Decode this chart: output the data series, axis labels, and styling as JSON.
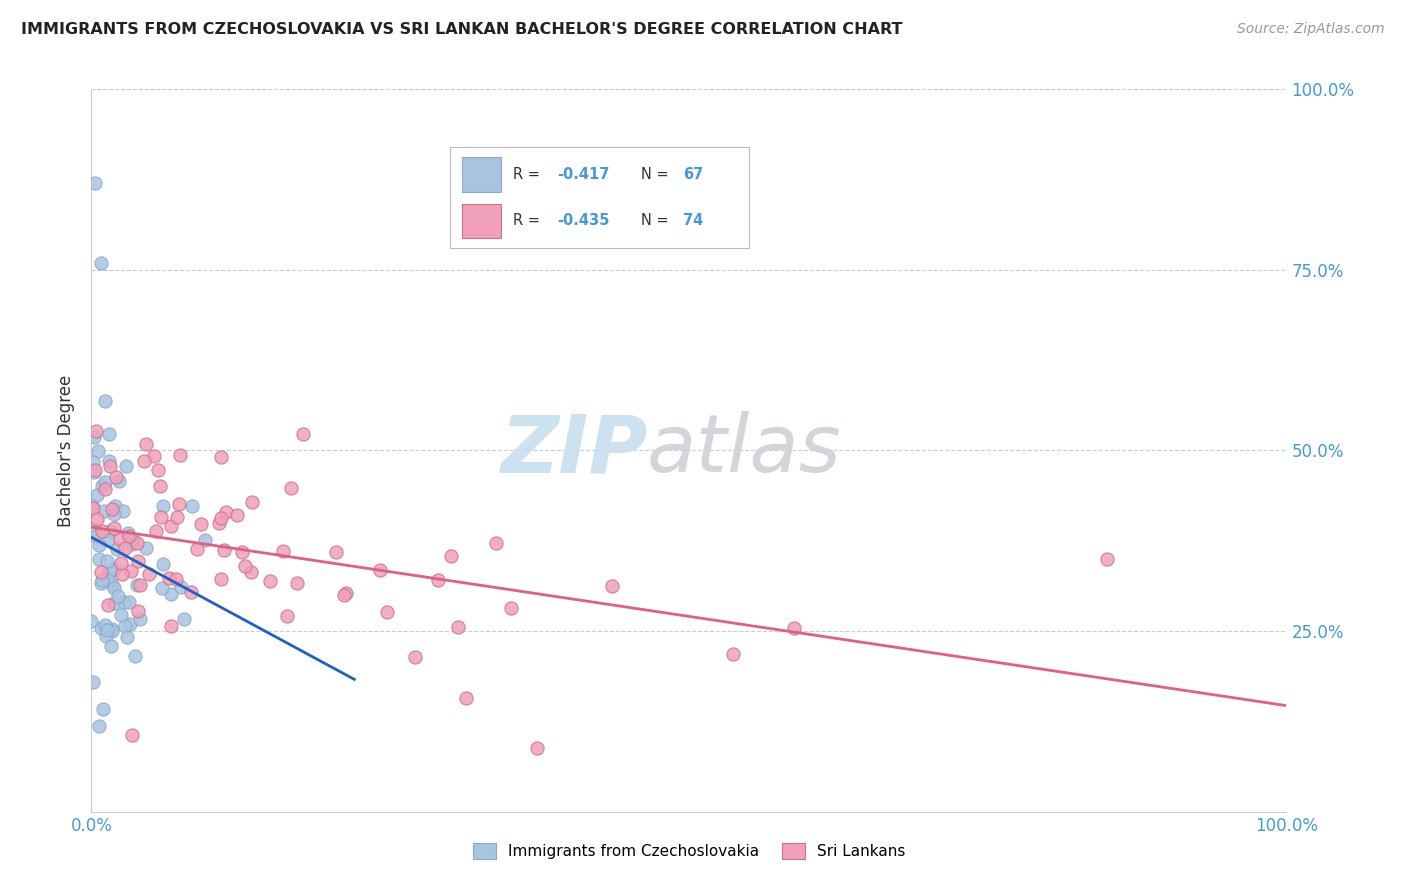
{
  "title": "IMMIGRANTS FROM CZECHOSLOVAKIA VS SRI LANKAN BACHELOR'S DEGREE CORRELATION CHART",
  "source": "Source: ZipAtlas.com",
  "ylabel": "Bachelor's Degree",
  "blue_color": "#a8c4e0",
  "pink_color": "#f0a0b8",
  "blue_line_color": "#2060c0",
  "pink_line_color": "#e06080",
  "title_color": "#222222",
  "source_color": "#999999",
  "axis_label_color": "#4499dd",
  "grid_color": "#cccccc",
  "background_color": "#ffffff",
  "legend_blue_r": "-0.417",
  "legend_blue_n": "67",
  "legend_pink_r": "-0.435",
  "legend_pink_n": "74",
  "watermark_zip_color": "#c8dff0",
  "watermark_atlas_color": "#d0d0d8"
}
